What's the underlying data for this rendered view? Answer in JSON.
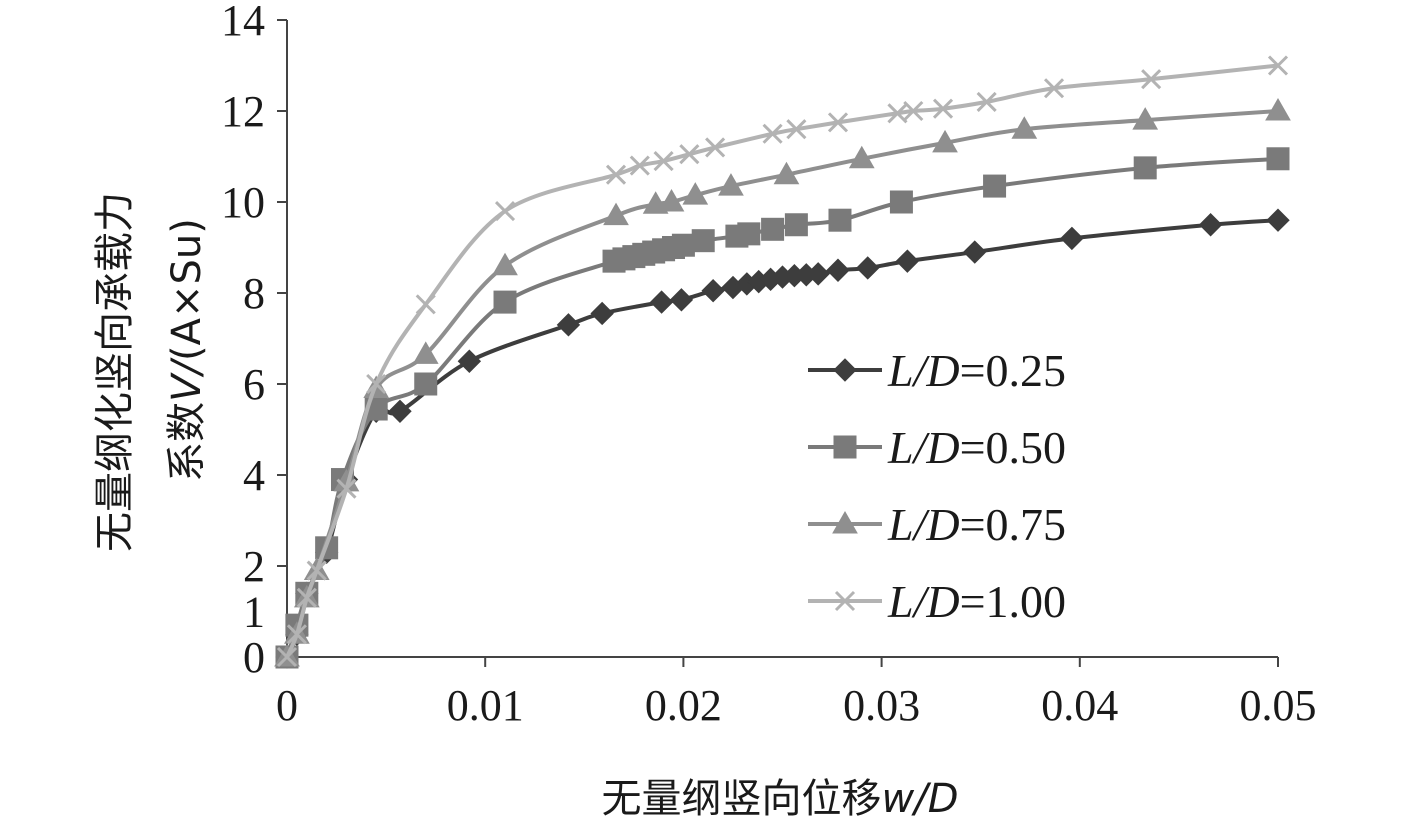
{
  "chart_data": {
    "type": "line",
    "xlabel": "无量纲竖向位移w/D",
    "xlabel_prefix": "无量纲竖向位移",
    "xlabel_var": "w/D",
    "ylabel_line1": "无量纲化竖向承载力",
    "ylabel_line2_prefix": "系数",
    "ylabel_line2_var": "V/",
    "ylabel_line2_suffix": "(A×Su)",
    "xlim": [
      0,
      0.05
    ],
    "ylim": [
      0,
      14
    ],
    "x_ticks": [
      0,
      0.01,
      0.02,
      0.03,
      0.04,
      0.05
    ],
    "x_tick_labels": [
      "0",
      "0.01",
      "0.02",
      "0.03",
      "0.04",
      "0.05"
    ],
    "y_ticks": [
      0,
      2,
      4,
      6,
      8,
      10,
      12,
      14
    ],
    "y_tick_labels": [
      "0",
      "2",
      "4",
      "6",
      "8",
      "10",
      "12",
      "14"
    ],
    "extra_y_tick_labels": [
      {
        "value": 1,
        "label": "1"
      }
    ],
    "grid": false,
    "legend_position": "bottom-right",
    "series": [
      {
        "name": "L/D=0.25",
        "name_var": "L/D",
        "name_value": "=0.25",
        "color": "#3d3d3d",
        "marker": "diamond",
        "x": [
          0,
          0.0005,
          0.001,
          0.002,
          0.003,
          0.0045,
          0.0057,
          0.0092,
          0.0142,
          0.0159,
          0.0189,
          0.0199,
          0.0215,
          0.0225,
          0.0232,
          0.0238,
          0.0244,
          0.025,
          0.0256,
          0.0262,
          0.0268,
          0.0278,
          0.0293,
          0.0313,
          0.0347,
          0.0396,
          0.0466,
          0.05
        ],
        "y": [
          0,
          0.5,
          1.4,
          2.3,
          3.9,
          5.4,
          5.4,
          6.5,
          7.3,
          7.55,
          7.8,
          7.85,
          8.05,
          8.12,
          8.2,
          8.25,
          8.3,
          8.35,
          8.38,
          8.4,
          8.42,
          8.5,
          8.55,
          8.7,
          8.9,
          9.2,
          9.5,
          9.6
        ]
      },
      {
        "name": "L/D=0.50",
        "name_var": "L/D",
        "name_value": "=0.50",
        "color": "#7a7a7a",
        "marker": "square",
        "x": [
          0,
          0.0005,
          0.001,
          0.002,
          0.0028,
          0.0045,
          0.007,
          0.011,
          0.0165,
          0.017,
          0.0175,
          0.018,
          0.0185,
          0.019,
          0.0195,
          0.02,
          0.021,
          0.0227,
          0.0233,
          0.0245,
          0.0257,
          0.0279,
          0.031,
          0.0357,
          0.0433,
          0.05
        ],
        "y": [
          0,
          0.7,
          1.4,
          2.4,
          3.9,
          5.45,
          6.0,
          7.8,
          8.7,
          8.75,
          8.8,
          8.85,
          8.9,
          8.95,
          9.0,
          9.05,
          9.15,
          9.25,
          9.3,
          9.4,
          9.5,
          9.6,
          10.0,
          10.35,
          10.75,
          10.95
        ]
      },
      {
        "name": "L/D=0.75",
        "name_var": "L/D",
        "name_value": "=0.75",
        "color": "#8f8f8f",
        "marker": "triangle",
        "x": [
          0,
          0.0005,
          0.001,
          0.0015,
          0.003,
          0.0045,
          0.007,
          0.011,
          0.0166,
          0.0186,
          0.0194,
          0.0206,
          0.0224,
          0.0252,
          0.029,
          0.0332,
          0.0372,
          0.0433,
          0.05
        ],
        "y": [
          0,
          0.5,
          1.3,
          1.9,
          3.85,
          5.9,
          6.65,
          8.6,
          9.7,
          9.95,
          10.0,
          10.15,
          10.35,
          10.6,
          10.95,
          11.3,
          11.6,
          11.8,
          12.0
        ]
      },
      {
        "name": "L/D=1.00",
        "name_var": "L/D",
        "name_value": "=1.00",
        "color": "#b3b3b3",
        "marker": "cross",
        "x": [
          0,
          0.0005,
          0.001,
          0.0015,
          0.003,
          0.0045,
          0.007,
          0.011,
          0.0166,
          0.0178,
          0.019,
          0.0203,
          0.0216,
          0.0245,
          0.0257,
          0.0278,
          0.0308,
          0.0316,
          0.0331,
          0.0353,
          0.0387,
          0.0436,
          0.05
        ],
        "y": [
          0,
          0.5,
          1.3,
          1.9,
          3.7,
          6.0,
          7.75,
          9.8,
          10.6,
          10.8,
          10.9,
          11.05,
          11.2,
          11.5,
          11.6,
          11.75,
          11.95,
          12.0,
          12.05,
          12.2,
          12.5,
          12.7,
          13.0
        ]
      }
    ]
  }
}
